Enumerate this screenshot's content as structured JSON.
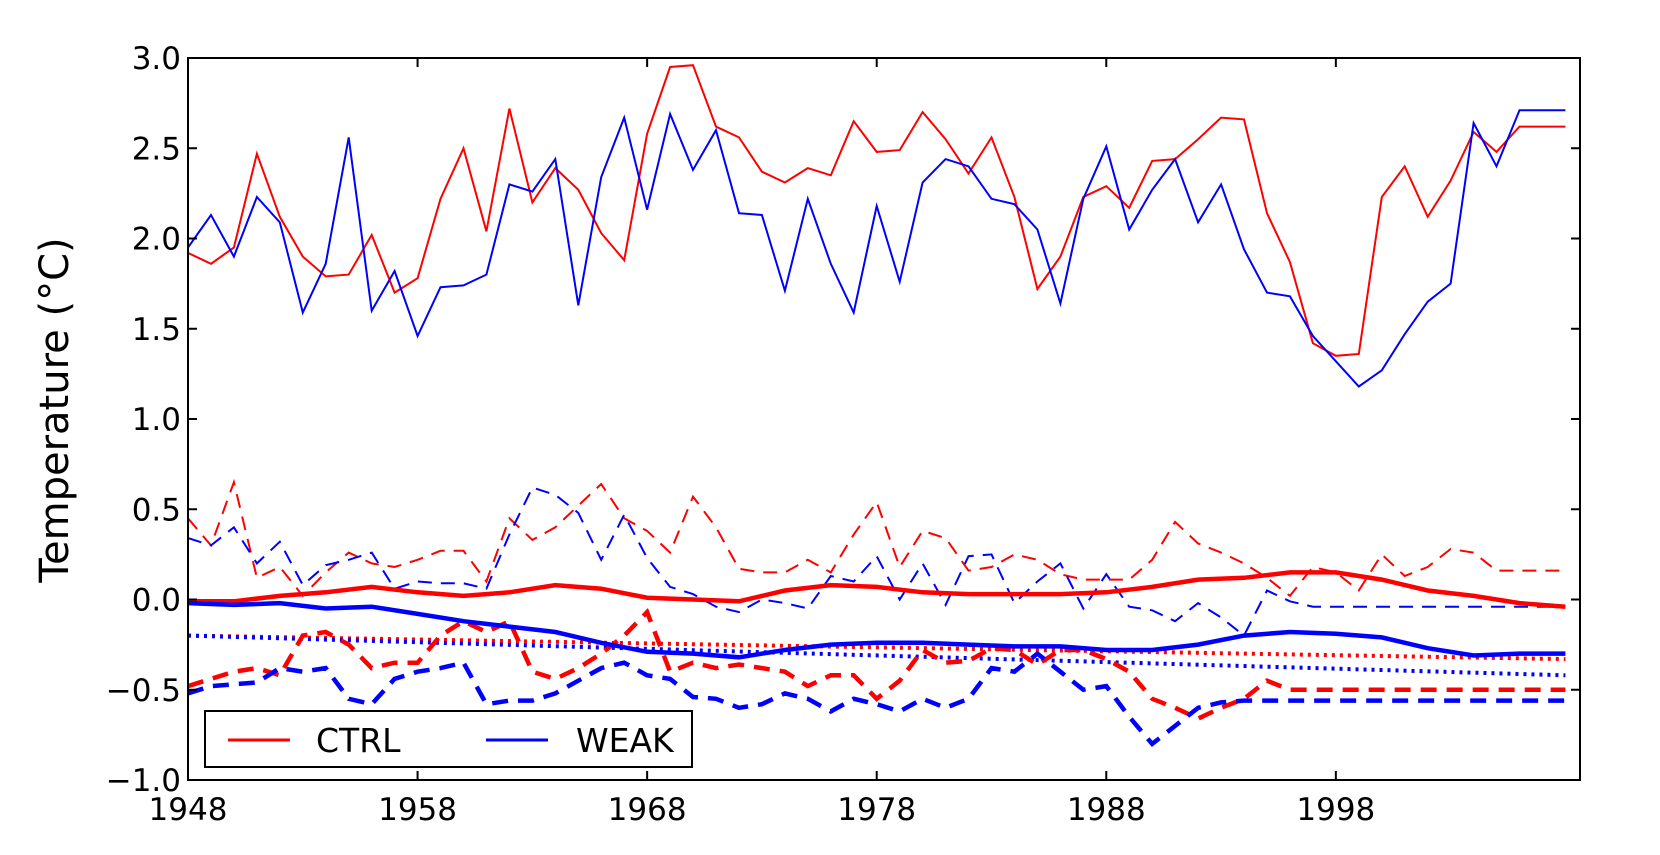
{
  "chart_data": {
    "type": "line",
    "ylabel": "Temperature (°C)",
    "xlim": [
      1948,
      2008.2
    ],
    "ylim": [
      -1.0,
      3.0
    ],
    "x_ticks": [
      1948,
      1958,
      1968,
      1978,
      1988,
      1998
    ],
    "x_tick_labels": [
      "1948",
      "1958",
      "1968",
      "1978",
      "1988",
      "1998"
    ],
    "y_ticks": [
      -1.0,
      -0.5,
      0.0,
      0.5,
      1.0,
      1.5,
      2.0,
      2.5,
      3.0
    ],
    "y_tick_labels": [
      "−1.0",
      "−0.5",
      "0.0",
      "0.5",
      "1.0",
      "1.5",
      "2.0",
      "2.5",
      "3.0"
    ],
    "grid": false,
    "legend": {
      "placement": "lower-left",
      "entries": [
        {
          "label": "CTRL",
          "color": "#ff0000"
        },
        {
          "label": "WEAK",
          "color": "#0000ff"
        }
      ]
    },
    "colors": {
      "CTRL": "#ff0000",
      "WEAK": "#0000ff"
    },
    "series": [
      {
        "name": "CTRL",
        "style": "solid-thin",
        "color": "#ff0000",
        "x": [
          1948,
          1949,
          1950,
          1951,
          1952,
          1953,
          1954,
          1955,
          1956,
          1957,
          1958,
          1959,
          1960,
          1961,
          1962,
          1963,
          1964,
          1965,
          1966,
          1967,
          1968,
          1969,
          1970,
          1971,
          1972,
          1973,
          1974,
          1975,
          1976,
          1977,
          1978,
          1979,
          1980,
          1981,
          1982,
          1983,
          1984,
          1985,
          1986,
          1987,
          1988,
          1989,
          1990,
          1991,
          1992,
          1993,
          1994,
          1995,
          1996,
          1997,
          1998,
          1999,
          2000,
          2001,
          2002,
          2003,
          2004,
          2005,
          2006,
          2007,
          2008
        ],
        "y": [
          1.92,
          1.86,
          1.95,
          2.47,
          2.12,
          1.9,
          1.79,
          1.8,
          2.02,
          1.7,
          1.78,
          2.22,
          2.5,
          2.04,
          2.72,
          2.2,
          2.39,
          2.27,
          2.03,
          1.88,
          2.58,
          2.95,
          2.96,
          2.62,
          2.56,
          2.37,
          2.31,
          2.39,
          2.35,
          2.65,
          2.48,
          2.49,
          2.7,
          2.55,
          2.36,
          2.56,
          2.23,
          1.72,
          1.9,
          2.23,
          2.29,
          2.17,
          2.43,
          2.44,
          2.55,
          2.67,
          2.66,
          2.14,
          1.87,
          1.42,
          1.35,
          1.36,
          2.23,
          2.4,
          2.12,
          2.32,
          2.59,
          2.48,
          2.62,
          2.62,
          2.62
        ]
      },
      {
        "name": "WEAK",
        "style": "solid-thin",
        "color": "#0000ff",
        "x": [
          1948,
          1949,
          1950,
          1951,
          1952,
          1953,
          1954,
          1955,
          1956,
          1957,
          1958,
          1959,
          1960,
          1961,
          1962,
          1963,
          1964,
          1965,
          1966,
          1967,
          1968,
          1969,
          1970,
          1971,
          1972,
          1973,
          1974,
          1975,
          1976,
          1977,
          1978,
          1979,
          1980,
          1981,
          1982,
          1983,
          1984,
          1985,
          1986,
          1987,
          1988,
          1989,
          1990,
          1991,
          1992,
          1993,
          1994,
          1995,
          1996,
          1997,
          1998,
          1999,
          2000,
          2001,
          2002,
          2003,
          2004,
          2005,
          2006,
          2007,
          2008
        ],
        "y": [
          1.95,
          2.13,
          1.9,
          2.23,
          2.09,
          1.59,
          1.86,
          2.56,
          1.6,
          1.82,
          1.46,
          1.73,
          1.74,
          1.8,
          2.3,
          2.26,
          2.44,
          1.63,
          2.34,
          2.67,
          2.16,
          2.69,
          2.38,
          2.6,
          2.14,
          2.13,
          1.71,
          2.22,
          1.86,
          1.59,
          2.18,
          1.76,
          2.31,
          2.44,
          2.4,
          2.22,
          2.19,
          2.05,
          1.64,
          2.22,
          2.51,
          2.05,
          2.27,
          2.44,
          2.09,
          2.3,
          1.94,
          1.7,
          1.68,
          1.46,
          1.32,
          1.18,
          1.27,
          1.47,
          1.65,
          1.75,
          2.64,
          2.4,
          2.71,
          2.71,
          2.71
        ]
      },
      {
        "name": "",
        "style": "solid-thick",
        "color": "#ff0000",
        "x": [
          1948,
          1950,
          1952,
          1954,
          1956,
          1958,
          1960,
          1962,
          1964,
          1966,
          1968,
          1970,
          1972,
          1974,
          1976,
          1978,
          1980,
          1982,
          1984,
          1986,
          1988,
          1990,
          1992,
          1994,
          1996,
          1998,
          2000,
          2002,
          2004,
          2006,
          2008
        ],
        "y": [
          -0.01,
          -0.01,
          0.02,
          0.04,
          0.07,
          0.04,
          0.02,
          0.04,
          0.08,
          0.06,
          0.01,
          0.0,
          -0.01,
          0.05,
          0.08,
          0.07,
          0.04,
          0.03,
          0.03,
          0.03,
          0.04,
          0.07,
          0.11,
          0.12,
          0.15,
          0.15,
          0.11,
          0.05,
          0.02,
          -0.02,
          -0.04
        ]
      },
      {
        "name": "",
        "style": "solid-thick",
        "color": "#0000ff",
        "x": [
          1948,
          1950,
          1952,
          1954,
          1956,
          1958,
          1960,
          1962,
          1964,
          1966,
          1968,
          1970,
          1972,
          1974,
          1976,
          1978,
          1980,
          1982,
          1984,
          1986,
          1988,
          1990,
          1992,
          1994,
          1996,
          1998,
          2000,
          2002,
          2004,
          2006,
          2008
        ],
        "y": [
          -0.02,
          -0.03,
          -0.02,
          -0.05,
          -0.04,
          -0.08,
          -0.12,
          -0.15,
          -0.18,
          -0.24,
          -0.29,
          -0.3,
          -0.32,
          -0.28,
          -0.25,
          -0.24,
          -0.24,
          -0.25,
          -0.26,
          -0.26,
          -0.28,
          -0.28,
          -0.25,
          -0.2,
          -0.18,
          -0.19,
          -0.21,
          -0.27,
          -0.31,
          -0.3,
          -0.3
        ]
      },
      {
        "name": "",
        "style": "dashed-thin",
        "color": "#ff0000",
        "x": [
          1948,
          1949,
          1950,
          1951,
          1952,
          1953,
          1954,
          1955,
          1956,
          1957,
          1958,
          1959,
          1960,
          1961,
          1962,
          1963,
          1964,
          1965,
          1966,
          1967,
          1968,
          1969,
          1970,
          1971,
          1972,
          1973,
          1974,
          1975,
          1976,
          1977,
          1978,
          1979,
          1980,
          1981,
          1982,
          1983,
          1984,
          1985,
          1986,
          1987,
          1988,
          1989,
          1990,
          1991,
          1992,
          1993,
          1994,
          1995,
          1996,
          1997,
          1998,
          1999,
          2000,
          2001,
          2002,
          2003,
          2004,
          2005,
          2006,
          2007,
          2008
        ],
        "y": [
          0.45,
          0.3,
          0.65,
          0.12,
          0.18,
          0.02,
          0.15,
          0.26,
          0.2,
          0.18,
          0.22,
          0.27,
          0.27,
          0.1,
          0.45,
          0.33,
          0.4,
          0.52,
          0.64,
          0.45,
          0.38,
          0.26,
          0.57,
          0.4,
          0.17,
          0.15,
          0.15,
          0.22,
          0.15,
          0.36,
          0.54,
          0.18,
          0.38,
          0.34,
          0.16,
          0.18,
          0.25,
          0.22,
          0.14,
          0.11,
          0.11,
          0.11,
          0.22,
          0.43,
          0.31,
          0.26,
          0.2,
          0.12,
          0.02,
          0.18,
          0.15,
          0.05,
          0.25,
          0.13,
          0.18,
          0.28,
          0.26,
          0.16,
          0.16,
          0.16,
          0.16
        ]
      },
      {
        "name": "",
        "style": "dashed-thin",
        "color": "#0000ff",
        "x": [
          1948,
          1949,
          1950,
          1951,
          1952,
          1953,
          1954,
          1955,
          1956,
          1957,
          1958,
          1959,
          1960,
          1961,
          1962,
          1963,
          1964,
          1965,
          1966,
          1967,
          1968,
          1969,
          1970,
          1971,
          1972,
          1973,
          1974,
          1975,
          1976,
          1977,
          1978,
          1979,
          1980,
          1981,
          1982,
          1983,
          1984,
          1985,
          1986,
          1987,
          1988,
          1989,
          1990,
          1991,
          1992,
          1993,
          1994,
          1995,
          1996,
          1997,
          1998,
          1999,
          2000,
          2001,
          2002,
          2003,
          2004,
          2005,
          2006,
          2007,
          2008
        ],
        "y": [
          0.34,
          0.3,
          0.4,
          0.2,
          0.32,
          0.08,
          0.19,
          0.22,
          0.26,
          0.06,
          0.1,
          0.09,
          0.09,
          0.06,
          0.36,
          0.62,
          0.58,
          0.48,
          0.22,
          0.47,
          0.23,
          0.07,
          0.03,
          -0.04,
          -0.07,
          0.0,
          -0.02,
          -0.05,
          0.13,
          0.1,
          0.24,
          0.0,
          0.2,
          -0.03,
          0.24,
          0.25,
          -0.02,
          0.1,
          0.2,
          -0.05,
          0.14,
          -0.04,
          -0.06,
          -0.12,
          -0.02,
          -0.1,
          -0.2,
          0.05,
          -0.01,
          -0.04,
          -0.04,
          -0.04,
          -0.04,
          -0.04,
          -0.04,
          -0.04,
          -0.04,
          -0.04,
          -0.04,
          -0.04,
          -0.04
        ]
      },
      {
        "name": "",
        "style": "dashed-thick",
        "color": "#ff0000",
        "x": [
          1948,
          1949,
          1950,
          1951,
          1952,
          1953,
          1954,
          1955,
          1956,
          1957,
          1958,
          1959,
          1960,
          1961,
          1962,
          1963,
          1964,
          1965,
          1966,
          1967,
          1968,
          1969,
          1970,
          1971,
          1972,
          1973,
          1974,
          1975,
          1976,
          1977,
          1978,
          1979,
          1980,
          1981,
          1982,
          1983,
          1984,
          1985,
          1986,
          1987,
          1988,
          1989,
          1990,
          1991,
          1992,
          1993,
          1994,
          1995,
          1996,
          1997,
          1998,
          1999,
          2000,
          2001,
          2002,
          2003,
          2004,
          2005,
          2006,
          2007,
          2008
        ],
        "y": [
          -0.48,
          -0.44,
          -0.4,
          -0.38,
          -0.42,
          -0.2,
          -0.18,
          -0.25,
          -0.38,
          -0.35,
          -0.35,
          -0.2,
          -0.12,
          -0.18,
          -0.12,
          -0.4,
          -0.44,
          -0.38,
          -0.3,
          -0.2,
          -0.07,
          -0.4,
          -0.35,
          -0.38,
          -0.36,
          -0.38,
          -0.4,
          -0.48,
          -0.42,
          -0.42,
          -0.55,
          -0.45,
          -0.28,
          -0.35,
          -0.34,
          -0.27,
          -0.28,
          -0.36,
          -0.28,
          -0.28,
          -0.33,
          -0.4,
          -0.55,
          -0.6,
          -0.66,
          -0.6,
          -0.55,
          -0.45,
          -0.5,
          -0.5,
          -0.5,
          -0.5,
          -0.5,
          -0.5,
          -0.5,
          -0.5,
          -0.5,
          -0.5,
          -0.5,
          -0.5,
          -0.5
        ]
      },
      {
        "name": "",
        "style": "dashed-thick",
        "color": "#0000ff",
        "x": [
          1948,
          1949,
          1950,
          1951,
          1952,
          1953,
          1954,
          1955,
          1956,
          1957,
          1958,
          1959,
          1960,
          1961,
          1962,
          1963,
          1964,
          1965,
          1966,
          1967,
          1968,
          1969,
          1970,
          1971,
          1972,
          1973,
          1974,
          1975,
          1976,
          1977,
          1978,
          1979,
          1980,
          1981,
          1982,
          1983,
          1984,
          1985,
          1986,
          1987,
          1988,
          1989,
          1990,
          1991,
          1992,
          1993,
          1994,
          1995,
          1996,
          1997,
          1998,
          1999,
          2000,
          2001,
          2002,
          2003,
          2004,
          2005,
          2006,
          2007,
          2008
        ],
        "y": [
          -0.52,
          -0.48,
          -0.47,
          -0.46,
          -0.38,
          -0.4,
          -0.38,
          -0.55,
          -0.58,
          -0.44,
          -0.4,
          -0.38,
          -0.35,
          -0.58,
          -0.56,
          -0.56,
          -0.52,
          -0.45,
          -0.38,
          -0.35,
          -0.42,
          -0.44,
          -0.54,
          -0.55,
          -0.6,
          -0.58,
          -0.52,
          -0.55,
          -0.62,
          -0.55,
          -0.58,
          -0.62,
          -0.55,
          -0.6,
          -0.55,
          -0.38,
          -0.4,
          -0.3,
          -0.4,
          -0.5,
          -0.48,
          -0.65,
          -0.8,
          -0.7,
          -0.6,
          -0.57,
          -0.56,
          -0.56,
          -0.56,
          -0.56,
          -0.56,
          -0.56,
          -0.56,
          -0.56,
          -0.56,
          -0.56,
          -0.56,
          -0.56,
          -0.56,
          -0.56,
          -0.56
        ]
      },
      {
        "name": "",
        "style": "dotted",
        "color": "#ff0000",
        "x": [
          1948,
          2008
        ],
        "y": [
          -0.2,
          -0.33
        ]
      },
      {
        "name": "",
        "style": "dotted",
        "color": "#0000ff",
        "x": [
          1948,
          2008
        ],
        "y": [
          -0.2,
          -0.42
        ]
      }
    ]
  }
}
